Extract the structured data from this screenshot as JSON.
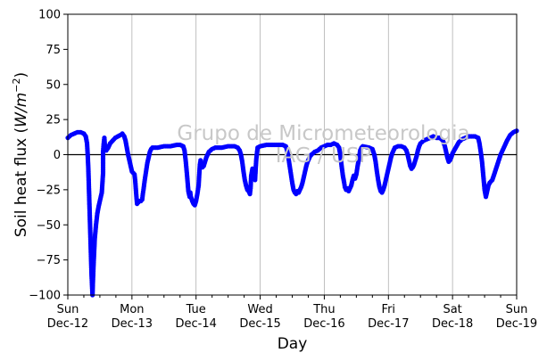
{
  "chart_data": {
    "type": "scatter",
    "title": "",
    "xlabel": "Day",
    "ylabel": "Soil heat flux (W/m⁻²)",
    "ylabel_base": "Soil heat flux (",
    "ylabel_unit": "W/m",
    "ylabel_exp": "−2",
    "ylabel_close": ")",
    "ylim": [
      -100,
      100
    ],
    "xlim": [
      0,
      7
    ],
    "y_ticks": [
      -100,
      -75,
      -50,
      -25,
      0,
      25,
      50,
      75,
      100
    ],
    "x_ticks": [
      {
        "day": 0,
        "weekday": "Sun",
        "date": "Dec-12"
      },
      {
        "day": 1,
        "weekday": "Mon",
        "date": "Dec-13"
      },
      {
        "day": 2,
        "weekday": "Tue",
        "date": "Dec-14"
      },
      {
        "day": 3,
        "weekday": "Wed",
        "date": "Dec-15"
      },
      {
        "day": 4,
        "weekday": "Thu",
        "date": "Dec-16"
      },
      {
        "day": 5,
        "weekday": "Fri",
        "date": "Dec-17"
      },
      {
        "day": 6,
        "weekday": "Sat",
        "date": "Dec-18"
      },
      {
        "day": 7,
        "weekday": "Sun",
        "date": "Dec-19"
      }
    ],
    "grid": "vertical",
    "zero_line": true,
    "marker_color": "#0000ff",
    "watermark": [
      "Grupo de Micrometeorologia",
      "IAG / USP"
    ],
    "series": [
      {
        "points": [
          [
            0.0,
            12
          ],
          [
            0.05,
            14
          ],
          [
            0.1,
            15
          ],
          [
            0.15,
            16
          ],
          [
            0.2,
            16
          ],
          [
            0.25,
            15
          ],
          [
            0.28,
            13
          ],
          [
            0.3,
            8
          ],
          [
            0.31,
            0
          ],
          [
            0.32,
            -10
          ],
          [
            0.33,
            -25
          ],
          [
            0.34,
            -40
          ],
          [
            0.35,
            -55
          ],
          [
            0.36,
            -70
          ],
          [
            0.37,
            -85
          ],
          [
            0.38,
            -95
          ],
          [
            0.385,
            -100
          ],
          [
            0.39,
            -92
          ],
          [
            0.4,
            -80
          ],
          [
            0.41,
            -70
          ],
          [
            0.42,
            -60
          ],
          [
            0.44,
            -50
          ],
          [
            0.46,
            -42
          ],
          [
            0.48,
            -37
          ],
          [
            0.5,
            -33
          ],
          [
            0.52,
            -29
          ],
          [
            0.53,
            -27
          ],
          [
            0.54,
            -20
          ],
          [
            0.55,
            -13
          ],
          [
            0.55,
            2
          ],
          [
            0.56,
            8
          ],
          [
            0.57,
            12
          ],
          [
            0.58,
            5
          ],
          [
            0.6,
            3
          ],
          [
            0.63,
            5
          ],
          [
            0.66,
            8
          ],
          [
            0.7,
            10
          ],
          [
            0.74,
            12
          ],
          [
            0.78,
            13
          ],
          [
            0.82,
            14
          ],
          [
            0.85,
            15
          ],
          [
            0.88,
            13
          ],
          [
            0.9,
            10
          ],
          [
            0.92,
            5
          ],
          [
            0.94,
            0
          ],
          [
            0.96,
            -4
          ],
          [
            0.98,
            -8
          ],
          [
            1.0,
            -12
          ],
          [
            1.02,
            -13
          ],
          [
            1.04,
            -14
          ],
          [
            1.05,
            -18
          ],
          [
            1.06,
            -24
          ],
          [
            1.07,
            -30
          ],
          [
            1.08,
            -35
          ],
          [
            1.1,
            -34
          ],
          [
            1.12,
            -33
          ],
          [
            1.14,
            -33
          ],
          [
            1.16,
            -32
          ],
          [
            1.17,
            -28
          ],
          [
            1.18,
            -25
          ],
          [
            1.2,
            -18
          ],
          [
            1.22,
            -12
          ],
          [
            1.24,
            -6
          ],
          [
            1.26,
            -2
          ],
          [
            1.28,
            2
          ],
          [
            1.3,
            4
          ],
          [
            1.32,
            5
          ],
          [
            1.4,
            5
          ],
          [
            1.5,
            6
          ],
          [
            1.6,
            6
          ],
          [
            1.7,
            7
          ],
          [
            1.75,
            7
          ],
          [
            1.8,
            6
          ],
          [
            1.82,
            3
          ],
          [
            1.84,
            -5
          ],
          [
            1.86,
            -15
          ],
          [
            1.88,
            -26
          ],
          [
            1.9,
            -30
          ],
          [
            1.91,
            -27
          ],
          [
            1.92,
            -30
          ],
          [
            1.94,
            -33
          ],
          [
            1.96,
            -35
          ],
          [
            1.98,
            -36
          ],
          [
            2.0,
            -33
          ],
          [
            2.02,
            -28
          ],
          [
            2.04,
            -22
          ],
          [
            2.05,
            -14
          ],
          [
            2.06,
            -7
          ],
          [
            2.07,
            -4
          ],
          [
            2.08,
            -9
          ],
          [
            2.1,
            -9
          ],
          [
            2.12,
            -8
          ],
          [
            2.14,
            -5
          ],
          [
            2.16,
            -2
          ],
          [
            2.18,
            0
          ],
          [
            2.2,
            2
          ],
          [
            2.25,
            4
          ],
          [
            2.3,
            5
          ],
          [
            2.4,
            5
          ],
          [
            2.5,
            6
          ],
          [
            2.6,
            6
          ],
          [
            2.65,
            5
          ],
          [
            2.68,
            3
          ],
          [
            2.7,
            0
          ],
          [
            2.72,
            -5
          ],
          [
            2.74,
            -12
          ],
          [
            2.76,
            -18
          ],
          [
            2.78,
            -22
          ],
          [
            2.8,
            -25
          ],
          [
            2.82,
            -26
          ],
          [
            2.84,
            -28
          ],
          [
            2.85,
            -24
          ],
          [
            2.86,
            -15
          ],
          [
            2.88,
            -10
          ],
          [
            2.9,
            -14
          ],
          [
            2.92,
            -18
          ],
          [
            2.93,
            -10
          ],
          [
            2.94,
            -3
          ],
          [
            2.96,
            5
          ],
          [
            3.0,
            6
          ],
          [
            3.1,
            7
          ],
          [
            3.2,
            7
          ],
          [
            3.3,
            7
          ],
          [
            3.35,
            7
          ],
          [
            3.4,
            6
          ],
          [
            3.42,
            3
          ],
          [
            3.44,
            -2
          ],
          [
            3.46,
            -8
          ],
          [
            3.48,
            -14
          ],
          [
            3.5,
            -20
          ],
          [
            3.52,
            -25
          ],
          [
            3.54,
            -27
          ],
          [
            3.56,
            -28
          ],
          [
            3.58,
            -26
          ],
          [
            3.6,
            -27
          ],
          [
            3.62,
            -25
          ],
          [
            3.64,
            -23
          ],
          [
            3.66,
            -20
          ],
          [
            3.68,
            -16
          ],
          [
            3.7,
            -12
          ],
          [
            3.72,
            -8
          ],
          [
            3.74,
            -5
          ],
          [
            3.76,
            -3
          ],
          [
            3.78,
            -1
          ],
          [
            3.8,
            0
          ],
          [
            3.85,
            2
          ],
          [
            3.9,
            3
          ],
          [
            3.95,
            5
          ],
          [
            4.0,
            6
          ],
          [
            4.05,
            7
          ],
          [
            4.1,
            7
          ],
          [
            4.15,
            8
          ],
          [
            4.2,
            7
          ],
          [
            4.23,
            5
          ],
          [
            4.25,
            0
          ],
          [
            4.27,
            -8
          ],
          [
            4.29,
            -15
          ],
          [
            4.31,
            -20
          ],
          [
            4.32,
            -23
          ],
          [
            4.34,
            -25
          ],
          [
            4.36,
            -24
          ],
          [
            4.38,
            -26
          ],
          [
            4.4,
            -24
          ],
          [
            4.42,
            -22
          ],
          [
            4.44,
            -18
          ],
          [
            4.46,
            -15
          ],
          [
            4.48,
            -17
          ],
          [
            4.5,
            -14
          ],
          [
            4.52,
            -8
          ],
          [
            4.54,
            -3
          ],
          [
            4.56,
            3
          ],
          [
            4.58,
            5
          ],
          [
            4.6,
            6
          ],
          [
            4.7,
            5
          ],
          [
            4.75,
            4
          ],
          [
            4.78,
            0
          ],
          [
            4.8,
            -5
          ],
          [
            4.82,
            -12
          ],
          [
            4.84,
            -18
          ],
          [
            4.86,
            -23
          ],
          [
            4.88,
            -26
          ],
          [
            4.9,
            -27
          ],
          [
            4.92,
            -25
          ],
          [
            4.94,
            -22
          ],
          [
            4.96,
            -18
          ],
          [
            4.98,
            -14
          ],
          [
            5.0,
            -10
          ],
          [
            5.02,
            -6
          ],
          [
            5.04,
            -2
          ],
          [
            5.06,
            1
          ],
          [
            5.08,
            3
          ],
          [
            5.1,
            5
          ],
          [
            5.15,
            6
          ],
          [
            5.2,
            6
          ],
          [
            5.25,
            5
          ],
          [
            5.28,
            3
          ],
          [
            5.3,
            0
          ],
          [
            5.32,
            -4
          ],
          [
            5.34,
            -8
          ],
          [
            5.36,
            -10
          ],
          [
            5.38,
            -9
          ],
          [
            5.4,
            -7
          ],
          [
            5.42,
            -4
          ],
          [
            5.44,
            -1
          ],
          [
            5.46,
            3
          ],
          [
            5.48,
            6
          ],
          [
            5.5,
            8
          ],
          [
            5.55,
            10
          ],
          [
            5.6,
            11
          ],
          [
            5.65,
            12
          ],
          [
            5.7,
            13
          ],
          [
            5.75,
            12
          ],
          [
            5.8,
            12
          ],
          [
            5.85,
            10
          ],
          [
            5.88,
            6
          ],
          [
            5.9,
            2
          ],
          [
            5.92,
            -2
          ],
          [
            5.94,
            -5
          ],
          [
            5.96,
            -4
          ],
          [
            5.98,
            -2
          ],
          [
            6.0,
            1
          ],
          [
            6.05,
            5
          ],
          [
            6.1,
            9
          ],
          [
            6.15,
            11
          ],
          [
            6.2,
            12
          ],
          [
            6.25,
            13
          ],
          [
            6.3,
            13
          ],
          [
            6.35,
            13
          ],
          [
            6.4,
            12
          ],
          [
            6.42,
            8
          ],
          [
            6.44,
            2
          ],
          [
            6.46,
            -5
          ],
          [
            6.48,
            -15
          ],
          [
            6.5,
            -25
          ],
          [
            6.52,
            -30
          ],
          [
            6.54,
            -26
          ],
          [
            6.56,
            -22
          ],
          [
            6.58,
            -20
          ],
          [
            6.6,
            -19
          ],
          [
            6.62,
            -18
          ],
          [
            6.65,
            -14
          ],
          [
            6.7,
            -7
          ],
          [
            6.75,
            0
          ],
          [
            6.8,
            5
          ],
          [
            6.85,
            10
          ],
          [
            6.9,
            14
          ],
          [
            6.95,
            16
          ],
          [
            7.0,
            17
          ]
        ]
      }
    ]
  }
}
